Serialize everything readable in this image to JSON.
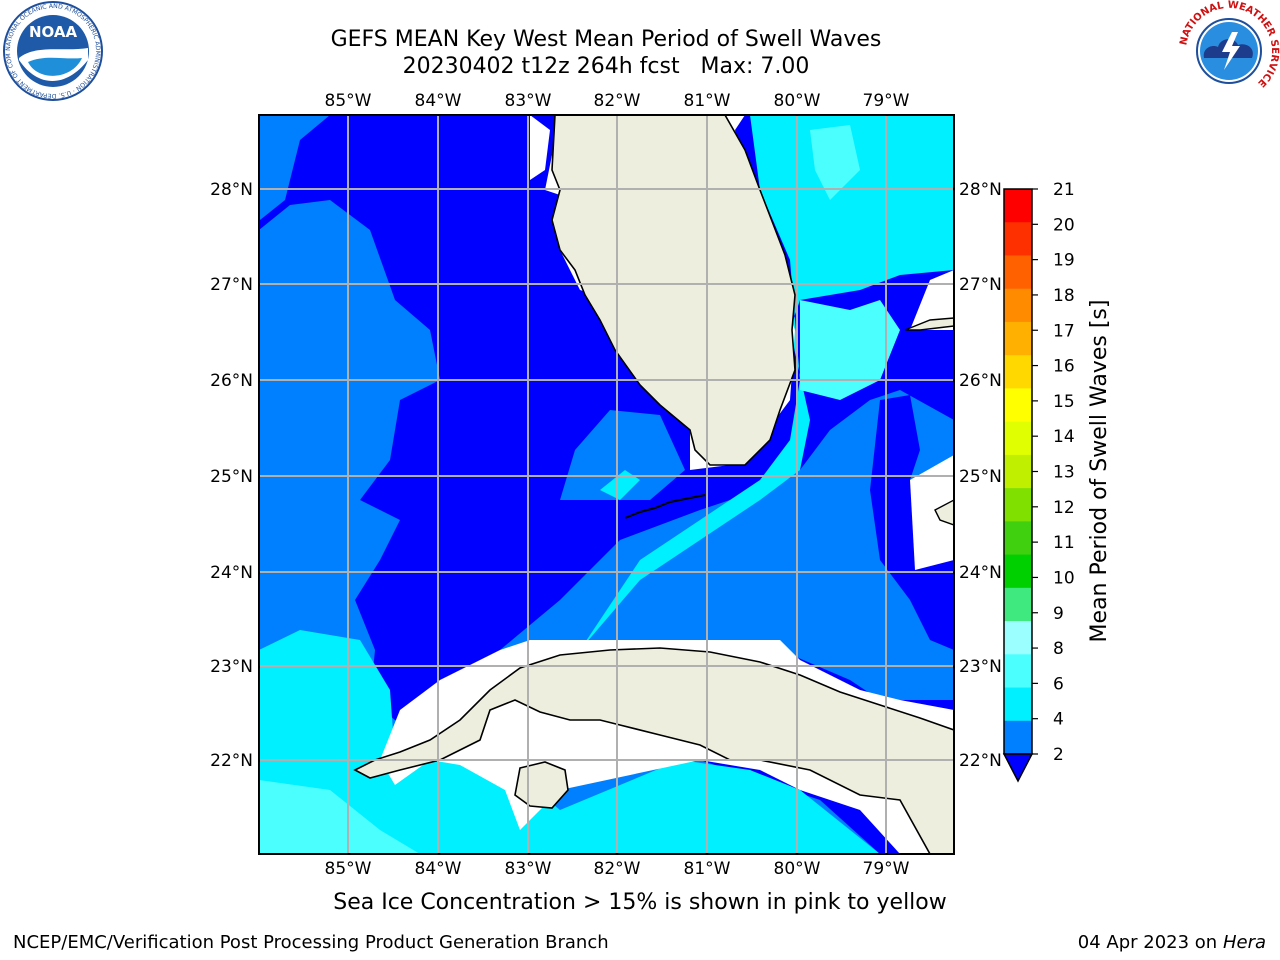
{
  "title": {
    "line1": "GEFS MEAN Key West Mean Period of Swell Waves",
    "line2": "20230402 t12z 264h fcst   Max: 7.00"
  },
  "map": {
    "lon_ticks": [
      "85°W",
      "84°W",
      "83°W",
      "82°W",
      "81°W",
      "80°W",
      "79°W"
    ],
    "lat_ticks": [
      "28°N",
      "27°N",
      "26°N",
      "25°N",
      "24°N",
      "23°N",
      "22°N"
    ],
    "colors": {
      "land": "#eeeedf",
      "coast": "#000000",
      "grid": "#b0b0b0"
    }
  },
  "colorbar": {
    "label": "Mean Period of Swell Waves [s]",
    "levels": [
      "21",
      "20",
      "19",
      "18",
      "17",
      "16",
      "15",
      "14",
      "13",
      "12",
      "11",
      "10",
      "9",
      "8",
      "6",
      "4",
      "2"
    ],
    "colors": [
      "#ff0000",
      "#ff3000",
      "#ff6000",
      "#ff8c00",
      "#ffb000",
      "#ffd800",
      "#ffff00",
      "#e0ff00",
      "#c0f000",
      "#80e000",
      "#40d010",
      "#00d000",
      "#40e880",
      "#9cffff",
      "#4cffff",
      "#00f0ff",
      "#0080ff"
    ],
    "extend_color": "#0000ff"
  },
  "ice_note": "Sea Ice Concentration > 15% is shown in pink to yellow",
  "footer": {
    "left": "NCEP/EMC/Verification Post Processing Product Generation Branch",
    "date": "04 Apr 2023 on ",
    "host": "Hera"
  },
  "logos": {
    "noaa_text": "NOAA",
    "noaa_ring": "NATIONAL OCEANIC AND ATMOSPHERIC ADMINISTRATION · U.S. DEPARTMENT OF COMMERCE",
    "nws_ring": "NATIONAL WEATHER SERVICE"
  }
}
